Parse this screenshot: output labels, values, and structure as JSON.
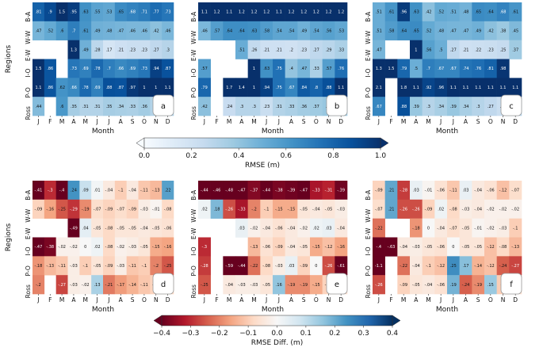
{
  "chart_data": [
    {
      "type": "heatmap",
      "panel": "a",
      "x": [
        "J",
        "F",
        "M",
        "A",
        "M",
        "J",
        "J",
        "A",
        "S",
        "O",
        "N",
        "D"
      ],
      "y": [
        "B-A",
        "W-W",
        "E-W",
        "I-O",
        "P-O",
        "Ross"
      ],
      "xlabel": "Month",
      "ylabel": "Regions",
      "vlim": [
        0,
        1.0
      ],
      "values": [
        [
          0.81,
          0.9,
          1.5,
          0.95,
          0.63,
          0.55,
          0.53,
          0.65,
          0.68,
          0.71,
          0.77,
          0.73
        ],
        [
          0.47,
          0.52,
          0.6,
          0.7,
          0.61,
          0.49,
          0.48,
          0.47,
          0.46,
          0.46,
          0.42,
          0.46
        ],
        [
          null,
          null,
          null,
          1.3,
          0.49,
          0.28,
          0.17,
          0.21,
          0.23,
          0.23,
          0.27,
          0.3
        ],
        [
          1.5,
          0.86,
          null,
          0.73,
          0.69,
          0.78,
          0.7,
          0.66,
          0.69,
          0.73,
          0.94,
          0.87
        ],
        [
          1.1,
          0.86,
          0.62,
          0.66,
          0.78,
          0.69,
          0.88,
          0.87,
          0.97,
          1,
          1,
          1.1
        ],
        [
          0.44,
          null,
          0.6,
          0.35,
          0.31,
          0.31,
          0.35,
          0.34,
          0.33,
          0.36,
          0.31,
          0.31
        ]
      ]
    },
    {
      "type": "heatmap",
      "panel": "b",
      "x": [
        "J",
        "F",
        "M",
        "A",
        "M",
        "J",
        "J",
        "A",
        "S",
        "O",
        "N",
        "D"
      ],
      "y": [
        "B-A",
        "W-W",
        "E-W",
        "I-O",
        "P-O",
        "Ross"
      ],
      "xlabel": "Month",
      "vlim": [
        0,
        1.0
      ],
      "values": [
        [
          1.1,
          1.2,
          1.1,
          1.2,
          1.2,
          1.2,
          1.1,
          1.2,
          1.2,
          1.2,
          1.2,
          1.2
        ],
        [
          0.46,
          0.57,
          0.64,
          0.64,
          0.63,
          0.58,
          0.54,
          0.54,
          0.49,
          0.54,
          0.56,
          0.53
        ],
        [
          null,
          null,
          null,
          0.51,
          0.26,
          0.21,
          0.21,
          0.2,
          0.23,
          0.27,
          0.29,
          0.33
        ],
        [
          0.57,
          null,
          null,
          null,
          1,
          0.63,
          0.75,
          0.4,
          0.47,
          0.33,
          0.57,
          0.76
        ],
        [
          0.79,
          null,
          1.7,
          1.4,
          1,
          0.94,
          0.75,
          0.67,
          0.84,
          0.8,
          0.88,
          1.1
        ],
        [
          0.42,
          null,
          0.24,
          0.3,
          0.3,
          0.23,
          0.31,
          0.33,
          0.36,
          0.37,
          0.39,
          0.36
        ]
      ]
    },
    {
      "type": "heatmap",
      "panel": "c",
      "x": [
        "J",
        "F",
        "M",
        "A",
        "M",
        "J",
        "J",
        "A",
        "S",
        "O",
        "N",
        "D"
      ],
      "y": [
        "B-A",
        "W-W",
        "E-W",
        "I-O",
        "P-O",
        "Ross"
      ],
      "xlabel": "Month",
      "vlim": [
        0,
        1.0
      ],
      "values": [
        [
          0.51,
          0.61,
          0.96,
          0.63,
          0.42,
          0.52,
          0.51,
          0.48,
          0.65,
          0.64,
          0.68,
          0.61
        ],
        [
          0.51,
          0.58,
          0.64,
          0.65,
          0.52,
          0.48,
          0.47,
          0.47,
          0.49,
          0.42,
          0.38,
          0.45
        ],
        [
          0.47,
          null,
          null,
          1,
          0.56,
          0.5,
          0.27,
          0.21,
          0.22,
          0.23,
          0.25,
          0.37
        ],
        [
          1.3,
          1.5,
          0.79,
          0.5,
          0.7,
          0.67,
          0.67,
          0.74,
          0.76,
          0.81,
          0.98,
          null
        ],
        [
          2.1,
          null,
          1.8,
          1.1,
          0.92,
          0.96,
          1.1,
          1.1,
          1.1,
          1.1,
          1.1,
          1.1
        ],
        [
          0.67,
          null,
          0.88,
          0.39,
          0.3,
          0.34,
          0.39,
          0.34,
          0.3,
          0.27,
          0.23,
          0.28
        ]
      ]
    },
    {
      "type": "heatmap",
      "panel": "d",
      "x": [
        "J",
        "F",
        "M",
        "A",
        "M",
        "J",
        "J",
        "A",
        "S",
        "O",
        "N",
        "D"
      ],
      "y": [
        "B-A",
        "W-W",
        "E-W",
        "I-O",
        "P-O",
        "Ross"
      ],
      "xlabel": "Month",
      "ylabel": "Regions",
      "vlim": [
        -0.4,
        0.4
      ],
      "values": [
        [
          -0.41,
          -0.3,
          -0.4,
          0.24,
          0.09,
          0.01,
          -0.04,
          -0.1,
          -0.04,
          -0.11,
          -0.13,
          0.22
        ],
        [
          -0.09,
          -0.16,
          -0.25,
          -0.29,
          -0.19,
          -0.07,
          -0.09,
          -0.07,
          -0.09,
          -0.03,
          -0.01,
          -0.08
        ],
        [
          null,
          null,
          null,
          -0.49,
          0.04,
          -0.05,
          -0.08,
          -0.05,
          -0.05,
          -0.04,
          -0.05,
          -0.06
        ],
        [
          -0.47,
          -0.38,
          -0.02,
          -0.02,
          0,
          0.02,
          -0.08,
          -0.02,
          -0.03,
          -0.05,
          -0.15,
          -0.16
        ],
        [
          -0.18,
          -0.13,
          -0.11,
          -0.03,
          -0.1,
          -0.05,
          -0.09,
          -0.03,
          -0.11,
          -0.1,
          -0.2,
          -0.25
        ],
        [
          -0.2,
          null,
          -0.27,
          -0.03,
          -0.02,
          0.13,
          -0.21,
          -0.17,
          -0.14,
          -0.11,
          -0.09,
          -0.08
        ]
      ]
    },
    {
      "type": "heatmap",
      "panel": "e",
      "x": [
        "J",
        "F",
        "M",
        "A",
        "M",
        "J",
        "J",
        "A",
        "S",
        "O",
        "N",
        "D"
      ],
      "y": [
        "B-A",
        "W-W",
        "E-W",
        "I-O",
        "P-O",
        "Ross"
      ],
      "xlabel": "Month",
      "vlim": [
        -0.4,
        0.4
      ],
      "values": [
        [
          -0.44,
          -0.46,
          -0.48,
          -0.47,
          -0.37,
          -0.44,
          -0.38,
          -0.39,
          -0.47,
          -0.33,
          -0.31,
          -0.39
        ],
        [
          0.02,
          0.18,
          -0.26,
          -0.33,
          -0.2,
          -0.1,
          -0.15,
          -0.15,
          -0.05,
          -0.04,
          -0.05,
          -0.03
        ],
        [
          null,
          null,
          null,
          0.03,
          -0.02,
          -0.04,
          -0.06,
          -0.04,
          -0.02,
          0.02,
          0.03,
          -0.04
        ],
        [
          -0.3,
          null,
          null,
          null,
          -0.13,
          -0.06,
          -0.09,
          -0.04,
          -0.05,
          -0.15,
          -0.12,
          -0.16
        ],
        [
          -0.28,
          null,
          -0.59,
          -0.44,
          -0.22,
          -0.08,
          -0.03,
          0.03,
          -0.09,
          0,
          -0.26,
          -0.61
        ],
        [
          -0.25,
          null,
          -0.04,
          -0.03,
          -0.03,
          -0.05,
          0.16,
          -0.19,
          -0.19,
          -0.15,
          -0.09,
          -0.06
        ]
      ]
    },
    {
      "type": "heatmap",
      "panel": "f",
      "x": [
        "J",
        "F",
        "M",
        "A",
        "M",
        "J",
        "J",
        "A",
        "S",
        "O",
        "N",
        "D"
      ],
      "y": [
        "B-A",
        "W-W",
        "E-W",
        "I-O",
        "P-O",
        "Ross"
      ],
      "xlabel": "Month",
      "vlim": [
        -0.4,
        0.4
      ],
      "values": [
        [
          -0.09,
          0.21,
          -0.28,
          0.03,
          -0.01,
          -0.06,
          -0.11,
          0.03,
          -0.04,
          -0.06,
          -0.12,
          -0.07
        ],
        [
          -0.07,
          0.21,
          -0.26,
          -0.26,
          -0.09,
          0.02,
          -0.08,
          -0.03,
          -0.04,
          -0.02,
          -0.02,
          -0.02
        ],
        [
          -0.22,
          null,
          null,
          -0.18,
          0,
          -0.04,
          -0.07,
          -0.05,
          -0.01,
          -0.02,
          -0.03,
          -0.1
        ],
        [
          -0.4,
          -0.63,
          -0.04,
          -0.03,
          -0.05,
          -0.06,
          0,
          -0.05,
          -0.05,
          -0.12,
          -0.08,
          -0.13
        ],
        [
          -1.1,
          null,
          -0.22,
          -0.04,
          -0.1,
          -0.12,
          0.25,
          0.17,
          -0.14,
          -0.12,
          -0.24,
          -0.27
        ],
        [
          -0.26,
          null,
          -0.09,
          -0.05,
          -0.04,
          -0.06,
          0.19,
          -0.24,
          -0.19,
          0.15,
          -0.1,
          -0.06
        ]
      ]
    }
  ],
  "colorbars": {
    "top": {
      "label": "RMSE (m)",
      "ticks": [
        "0.0",
        "0.2",
        "0.4",
        "0.6",
        "0.8",
        "1.0"
      ],
      "min": 0,
      "max": 1.0
    },
    "bottom": {
      "label": "RMSE Diff. (m)",
      "ticks": [
        "−0.4",
        "−0.3",
        "−0.2",
        "−0.1",
        "0.0",
        "0.1",
        "0.2",
        "0.3",
        "0.4"
      ],
      "min": -0.4,
      "max": 0.4
    }
  },
  "colors": {
    "blues": [
      "#f7fbff",
      "#deebf7",
      "#c6dbef",
      "#9ecae1",
      "#6baed6",
      "#4292c6",
      "#2171b5",
      "#08519c",
      "#08306b"
    ],
    "diverging": [
      "#67001f",
      "#b2182b",
      "#d6604d",
      "#f4a582",
      "#fddbc7",
      "#f7f7f7",
      "#d1e5f0",
      "#92c5de",
      "#4393c3",
      "#2166ac",
      "#053061"
    ]
  }
}
